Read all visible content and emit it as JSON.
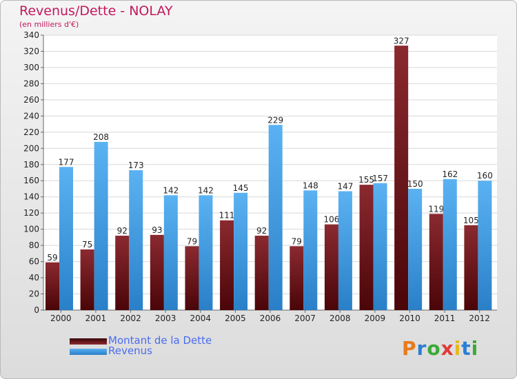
{
  "chart_data": {
    "type": "bar",
    "title": "Revenus/Dette - NOLAY",
    "subtitle": "(en milliers d'€)",
    "categories": [
      "2000",
      "2001",
      "2002",
      "2003",
      "2004",
      "2005",
      "2006",
      "2007",
      "2008",
      "2009",
      "2010",
      "2011",
      "2012"
    ],
    "series": [
      {
        "name": "Montant de la Dette",
        "color": "#7a1a22",
        "values": [
          59,
          75,
          92,
          93,
          79,
          111,
          92,
          79,
          106,
          155,
          327,
          119,
          105
        ]
      },
      {
        "name": "Revenus",
        "color": "#4aa3e8",
        "values": [
          177,
          208,
          173,
          142,
          142,
          145,
          229,
          148,
          147,
          157,
          150,
          162,
          160
        ]
      }
    ],
    "ylim": [
      0,
      340
    ],
    "ytick_step": 20,
    "grid": true,
    "legend_position": "bottom-left"
  },
  "logo": {
    "letters": [
      "P",
      "r",
      "o",
      "x",
      "i",
      "t",
      "i"
    ],
    "colors": [
      "#e87b1c",
      "#2a7fd4",
      "#3aaa35",
      "#e03a3a",
      "#e8b81c",
      "#2a7fd4",
      "#3aaa35"
    ]
  }
}
